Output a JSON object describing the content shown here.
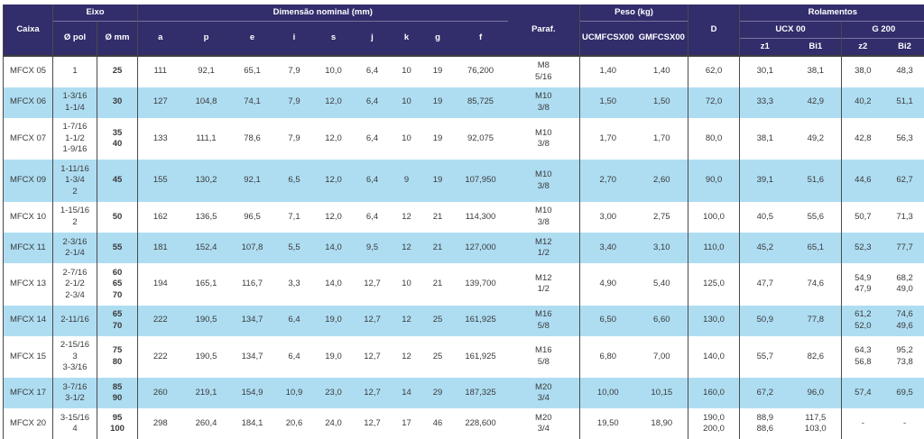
{
  "colors": {
    "header_bg": "#322d6b",
    "header_text": "#ffffff",
    "row_bg": "#ffffff",
    "row_alt_bg": "#aeddf2",
    "body_text": "#3a3a3a",
    "grid_line": "#4a4a4a"
  },
  "table": {
    "header": {
      "caixa": "Caixa",
      "eixo_group": "Eixo",
      "pol": "Ø pol",
      "mm": "Ø mm",
      "dim_group": "Dimensão nominal (mm)",
      "dim_cols": [
        "a",
        "p",
        "e",
        "i",
        "s",
        "j",
        "k",
        "g",
        "f"
      ],
      "paraf": "Paraf.",
      "peso_group": "Peso (kg)",
      "peso_cols": [
        "UCMFCSX00",
        "GMFCSX00"
      ],
      "d": "D",
      "rolamentos_group": "Rolamentos",
      "ucx_group": "UCX 00",
      "g200_group": "G 200",
      "rol_cols": [
        "z1",
        "Bi1",
        "z2",
        "Bi2"
      ]
    },
    "rows": [
      {
        "caixa": "MFCX 05",
        "pol": [
          "1"
        ],
        "mm": [
          "25"
        ],
        "dims": [
          "111",
          "92,1",
          "65,1",
          "7,9",
          "10,0",
          "6,4",
          "10",
          "19",
          "76,200"
        ],
        "paraf": [
          "M8",
          "5/16"
        ],
        "peso": [
          "1,40",
          "1,40"
        ],
        "d": [
          "62,0"
        ],
        "z1": [
          "30,1"
        ],
        "bi1": [
          "38,1"
        ],
        "z2": [
          "38,0"
        ],
        "bi2": [
          "48,3"
        ]
      },
      {
        "caixa": "MFCX 06",
        "pol": [
          "1-3/16",
          "1-1/4"
        ],
        "mm": [
          "30"
        ],
        "dims": [
          "127",
          "104,8",
          "74,1",
          "7,9",
          "12,0",
          "6,4",
          "10",
          "19",
          "85,725"
        ],
        "paraf": [
          "M10",
          "3/8"
        ],
        "peso": [
          "1,50",
          "1,50"
        ],
        "d": [
          "72,0"
        ],
        "z1": [
          "33,3"
        ],
        "bi1": [
          "42,9"
        ],
        "z2": [
          "40,2"
        ],
        "bi2": [
          "51,1"
        ]
      },
      {
        "caixa": "MFCX 07",
        "pol": [
          "1-7/16",
          "1-1/2",
          "1-9/16"
        ],
        "mm": [
          "35",
          "40"
        ],
        "dims": [
          "133",
          "111,1",
          "78,6",
          "7,9",
          "12,0",
          "6,4",
          "10",
          "19",
          "92,075"
        ],
        "paraf": [
          "M10",
          "3/8"
        ],
        "peso": [
          "1,70",
          "1,70"
        ],
        "d": [
          "80,0"
        ],
        "z1": [
          "38,1"
        ],
        "bi1": [
          "49,2"
        ],
        "z2": [
          "42,8"
        ],
        "bi2": [
          "56,3"
        ]
      },
      {
        "caixa": "MFCX 09",
        "pol": [
          "1-11/16",
          "1-3/4",
          "2"
        ],
        "mm": [
          "45"
        ],
        "dims": [
          "155",
          "130,2",
          "92,1",
          "6,5",
          "12,0",
          "6,4",
          "9",
          "19",
          "107,950"
        ],
        "paraf": [
          "M10",
          "3/8"
        ],
        "peso": [
          "2,70",
          "2,60"
        ],
        "d": [
          "90,0"
        ],
        "z1": [
          "39,1"
        ],
        "bi1": [
          "51,6"
        ],
        "z2": [
          "44,6"
        ],
        "bi2": [
          "62,7"
        ]
      },
      {
        "caixa": "MFCX 10",
        "pol": [
          "1-15/16",
          "2"
        ],
        "mm": [
          "50"
        ],
        "dims": [
          "162",
          "136,5",
          "96,5",
          "7,1",
          "12,0",
          "6,4",
          "12",
          "21",
          "114,300"
        ],
        "paraf": [
          "M10",
          "3/8"
        ],
        "peso": [
          "3,00",
          "2,75"
        ],
        "d": [
          "100,0"
        ],
        "z1": [
          "40,5"
        ],
        "bi1": [
          "55,6"
        ],
        "z2": [
          "50,7"
        ],
        "bi2": [
          "71,3"
        ]
      },
      {
        "caixa": "MFCX 11",
        "pol": [
          "2-3/16",
          "2-1/4"
        ],
        "mm": [
          "55"
        ],
        "dims": [
          "181",
          "152,4",
          "107,8",
          "5,5",
          "14,0",
          "9,5",
          "12",
          "21",
          "127,000"
        ],
        "paraf": [
          "M12",
          "1/2"
        ],
        "peso": [
          "3,40",
          "3,10"
        ],
        "d": [
          "110,0"
        ],
        "z1": [
          "45,2"
        ],
        "bi1": [
          "65,1"
        ],
        "z2": [
          "52,3"
        ],
        "bi2": [
          "77,7"
        ]
      },
      {
        "caixa": "MFCX 13",
        "pol": [
          "2-7/16",
          "2-1/2",
          "2-3/4"
        ],
        "mm": [
          "60",
          "65",
          "70"
        ],
        "dims": [
          "194",
          "165,1",
          "116,7",
          "3,3",
          "14,0",
          "12,7",
          "10",
          "21",
          "139,700"
        ],
        "paraf": [
          "M12",
          "1/2"
        ],
        "peso": [
          "4,90",
          "5,40"
        ],
        "d": [
          "125,0"
        ],
        "z1": [
          "47,7"
        ],
        "bi1": [
          "74,6"
        ],
        "z2": [
          "54,9",
          "47,9"
        ],
        "bi2": [
          "68,2",
          "49,0"
        ]
      },
      {
        "caixa": "MFCX 14",
        "pol": [
          "2-11/16"
        ],
        "mm": [
          "65",
          "70"
        ],
        "dims": [
          "222",
          "190,5",
          "134,7",
          "6,4",
          "19,0",
          "12,7",
          "12",
          "25",
          "161,925"
        ],
        "paraf": [
          "M16",
          "5/8"
        ],
        "peso": [
          "6,50",
          "6,60"
        ],
        "d": [
          "130,0"
        ],
        "z1": [
          "50,9"
        ],
        "bi1": [
          "77,8"
        ],
        "z2": [
          "61,2",
          "52,0"
        ],
        "bi2": [
          "74,6",
          "49,6"
        ]
      },
      {
        "caixa": "MFCX 15",
        "pol": [
          "2-15/16",
          "3",
          "3-3/16"
        ],
        "mm": [
          "75",
          "80"
        ],
        "dims": [
          "222",
          "190,5",
          "134,7",
          "6,4",
          "19,0",
          "12,7",
          "12",
          "25",
          "161,925"
        ],
        "paraf": [
          "M16",
          "5/8"
        ],
        "peso": [
          "6,80",
          "7,00"
        ],
        "d": [
          "140,0"
        ],
        "z1": [
          "55,7"
        ],
        "bi1": [
          "82,6"
        ],
        "z2": [
          "64,3",
          "56,8"
        ],
        "bi2": [
          "95,2",
          "73,8"
        ]
      },
      {
        "caixa": "MFCX 17",
        "pol": [
          "3-7/16",
          "3-1/2"
        ],
        "mm": [
          "85",
          "90"
        ],
        "dims": [
          "260",
          "219,1",
          "154,9",
          "10,9",
          "23,0",
          "12,7",
          "14",
          "29",
          "187,325"
        ],
        "paraf": [
          "M20",
          "3/4"
        ],
        "peso": [
          "10,00",
          "10,15"
        ],
        "d": [
          "160,0"
        ],
        "z1": [
          "67,2"
        ],
        "bi1": [
          "96,0"
        ],
        "z2": [
          "57,4"
        ],
        "bi2": [
          "69,5"
        ]
      },
      {
        "caixa": "MFCX 20",
        "pol": [
          "3-15/16",
          "4"
        ],
        "mm": [
          "95",
          "100"
        ],
        "dims": [
          "298",
          "260,4",
          "184,1",
          "20,6",
          "24,0",
          "12,7",
          "17",
          "46",
          "228,600"
        ],
        "paraf": [
          "M20",
          "3/4"
        ],
        "peso": [
          "19,50",
          "18,90"
        ],
        "d": [
          "190,0",
          "200,0"
        ],
        "z1": [
          "88,9",
          "88,6"
        ],
        "bi1": [
          "117,5",
          "103,0"
        ],
        "z2": [
          "-"
        ],
        "bi2": [
          "-"
        ]
      }
    ]
  }
}
